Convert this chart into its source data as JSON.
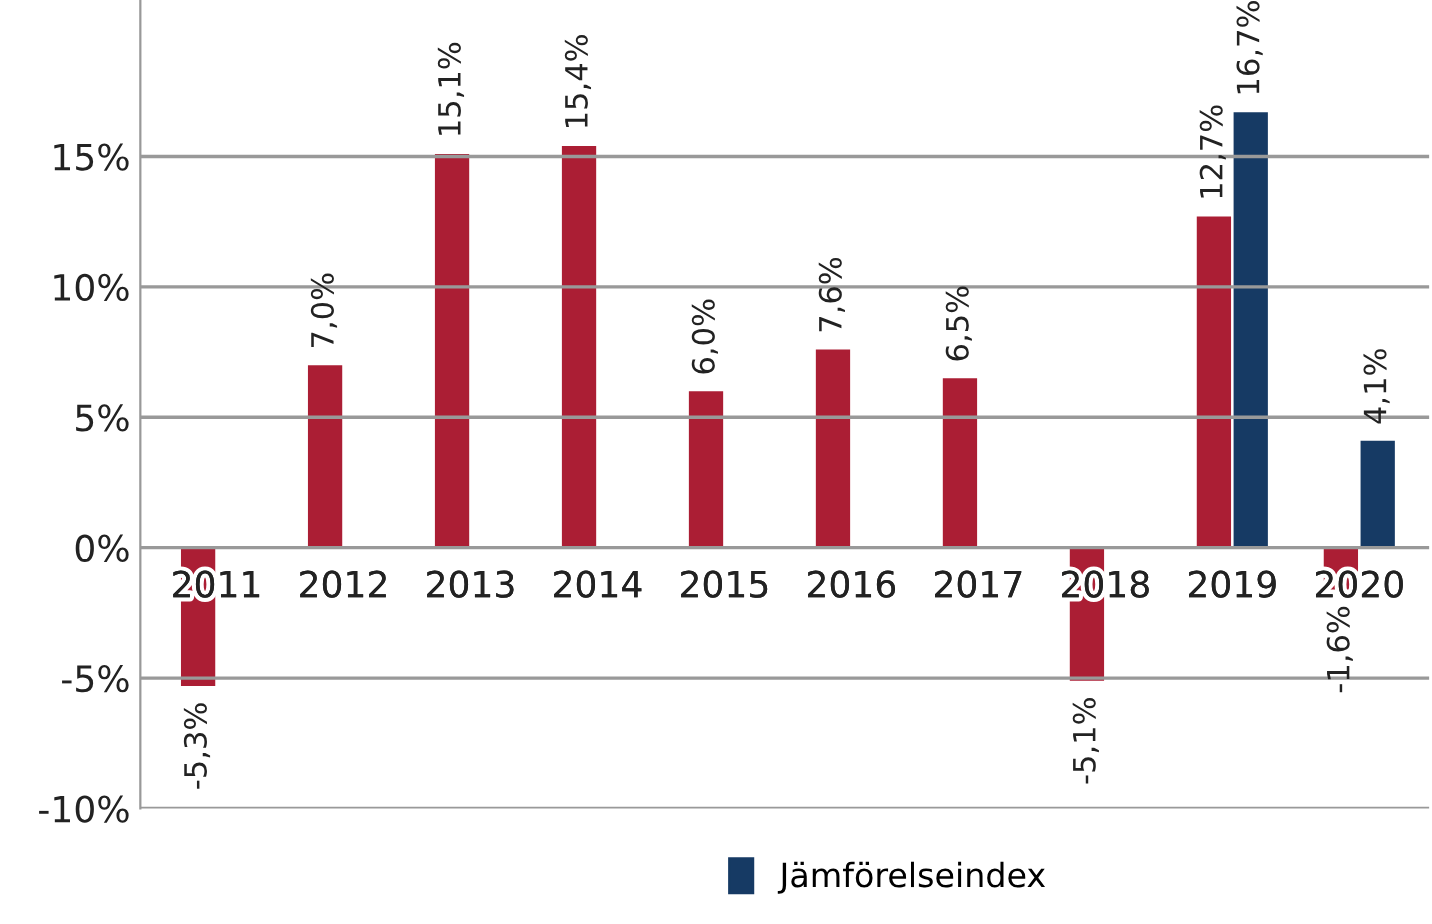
{
  "chart_data": {
    "type": "bar",
    "categories": [
      "2011",
      "2012",
      "2013",
      "2014",
      "2015",
      "2016",
      "2017",
      "2018",
      "2019",
      "2020"
    ],
    "series": [
      {
        "color": "#ab1e34",
        "values": [
          -5.3,
          7.0,
          15.1,
          15.4,
          6.0,
          7.6,
          6.5,
          -5.1,
          12.7,
          -1.6
        ],
        "value_labels": [
          "-5,3%",
          "7,0%",
          "15,1%",
          "15,4%",
          "6,0%",
          "7,6%",
          "6,5%",
          "-5,1%",
          "12,7%",
          "-1,6%"
        ]
      },
      {
        "name": "Jämförelseindex",
        "color": "#163a64",
        "values": [
          null,
          null,
          null,
          null,
          null,
          null,
          null,
          null,
          16.7,
          4.1
        ],
        "value_labels": [
          null,
          null,
          null,
          null,
          null,
          null,
          null,
          null,
          "16,7%",
          "4,1%"
        ]
      }
    ],
    "ylim": [
      -10,
      21
    ],
    "yticks": [
      {
        "value": -10,
        "label": "-10%"
      },
      {
        "value": -5,
        "label": "-5%"
      },
      {
        "value": 0,
        "label": "0%"
      },
      {
        "value": 5,
        "label": "5%"
      },
      {
        "value": 10,
        "label": "10%"
      },
      {
        "value": 15,
        "label": "15%"
      }
    ],
    "grid": "y",
    "legend": "bottom"
  }
}
